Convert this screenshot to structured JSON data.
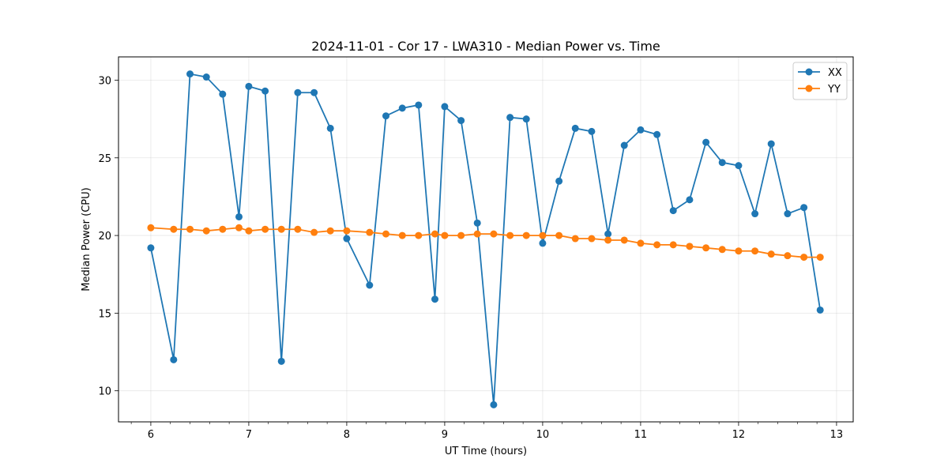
{
  "chart_data": {
    "type": "line",
    "title": "2024-11-01 - Cor 17 - LWA310 - Median Power vs. Time",
    "xlabel": "UT Time (hours)",
    "ylabel": "Median Power (CPU)",
    "xlim": [
      5.67,
      13.17
    ],
    "ylim": [
      8.0,
      31.5
    ],
    "xticks": [
      6,
      7,
      8,
      9,
      10,
      11,
      12,
      13
    ],
    "xtick_labels": [
      "6",
      "7",
      "8",
      "9",
      "10",
      "11",
      "12",
      "13"
    ],
    "yticks": [
      10,
      15,
      20,
      25,
      30
    ],
    "ytick_labels": [
      "10",
      "15",
      "20",
      "25",
      "30"
    ],
    "grid": true,
    "legend_position": "top-right",
    "series": [
      {
        "name": "XX",
        "color": "#1f77b4",
        "x": [
          6.0,
          6.233,
          6.4,
          6.567,
          6.733,
          6.9,
          7.0,
          7.167,
          7.333,
          7.5,
          7.667,
          7.833,
          8.0,
          8.233,
          8.4,
          8.567,
          8.733,
          8.9,
          9.0,
          9.167,
          9.333,
          9.5,
          9.667,
          9.833,
          10.0,
          10.167,
          10.333,
          10.5,
          10.667,
          10.833,
          11.0,
          11.167,
          11.333,
          11.5,
          11.667,
          11.833,
          12.0,
          12.167,
          12.333,
          12.5,
          12.667,
          12.833
        ],
        "values": [
          19.2,
          12.0,
          30.4,
          30.2,
          29.1,
          21.2,
          29.6,
          29.3,
          11.9,
          29.2,
          29.2,
          26.9,
          19.8,
          16.8,
          27.7,
          28.2,
          28.4,
          15.9,
          28.3,
          27.4,
          20.8,
          9.1,
          27.6,
          27.5,
          19.5,
          23.5,
          26.9,
          26.7,
          20.1,
          25.8,
          26.8,
          26.5,
          21.6,
          22.3,
          26.0,
          24.7,
          24.5,
          21.4,
          25.9,
          21.4,
          21.8,
          15.2
        ]
      },
      {
        "name": "YY",
        "color": "#ff7f0e",
        "x": [
          6.0,
          6.233,
          6.4,
          6.567,
          6.733,
          6.9,
          7.0,
          7.167,
          7.333,
          7.5,
          7.667,
          7.833,
          8.0,
          8.233,
          8.4,
          8.567,
          8.733,
          8.9,
          9.0,
          9.167,
          9.333,
          9.5,
          9.667,
          9.833,
          10.0,
          10.167,
          10.333,
          10.5,
          10.667,
          10.833,
          11.0,
          11.167,
          11.333,
          11.5,
          11.667,
          11.833,
          12.0,
          12.167,
          12.333,
          12.5,
          12.667,
          12.833
        ],
        "values": [
          20.5,
          20.4,
          20.4,
          20.3,
          20.4,
          20.5,
          20.3,
          20.4,
          20.4,
          20.4,
          20.2,
          20.3,
          20.3,
          20.2,
          20.1,
          20.0,
          20.0,
          20.1,
          20.0,
          20.0,
          20.1,
          20.1,
          20.0,
          20.0,
          20.0,
          20.0,
          19.8,
          19.8,
          19.7,
          19.7,
          19.5,
          19.4,
          19.4,
          19.3,
          19.2,
          19.1,
          19.0,
          19.0,
          18.8,
          18.7,
          18.6,
          18.6
        ]
      }
    ]
  }
}
